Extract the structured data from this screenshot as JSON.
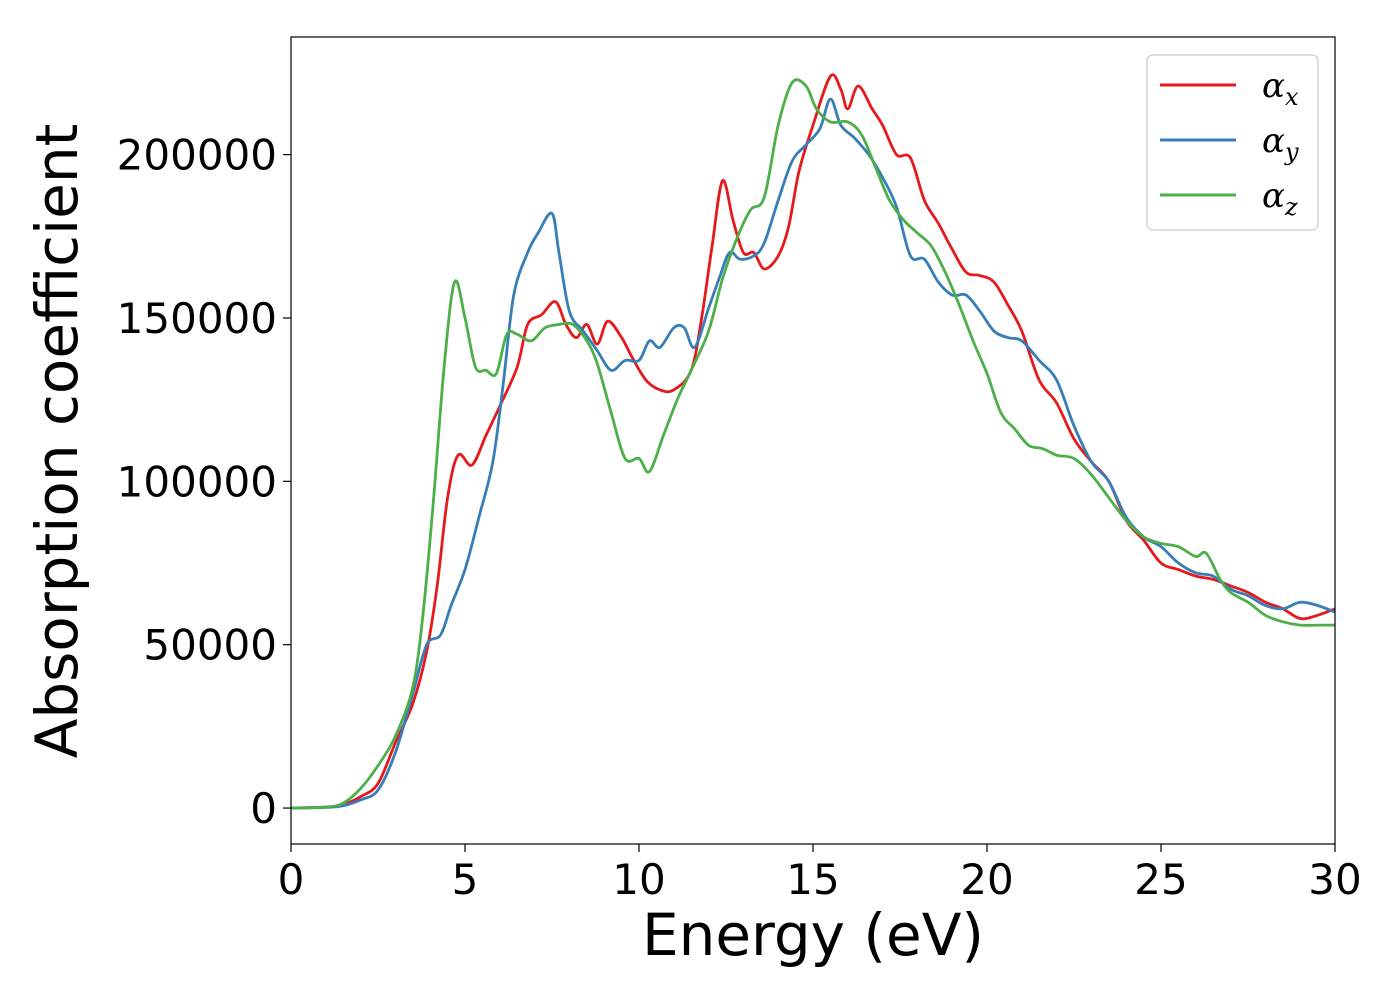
{
  "chart_data": {
    "type": "line",
    "title": "",
    "xlabel": "Energy (eV)",
    "ylabel": "Absorption coefficient",
    "xlim": [
      0,
      30
    ],
    "ylim": [
      -11000,
      236000
    ],
    "xticks": [
      0,
      5,
      10,
      15,
      20,
      25,
      30
    ],
    "yticks": [
      0,
      50000,
      100000,
      150000,
      200000
    ],
    "xtick_labels": [
      "0",
      "5",
      "10",
      "15",
      "20",
      "25",
      "30"
    ],
    "ytick_labels": [
      "0",
      "50000",
      "100000",
      "150000",
      "200000"
    ],
    "grid": false,
    "legend_position": "top-right",
    "series": [
      {
        "name": "αx",
        "symbol": "α",
        "subscript": "x",
        "color": "#e41a1c",
        "points": [
          [
            0,
            0
          ],
          [
            1,
            300
          ],
          [
            1.5,
            1000
          ],
          [
            2,
            3500
          ],
          [
            2.5,
            7500
          ],
          [
            3,
            20000
          ],
          [
            3.5,
            32000
          ],
          [
            3.9,
            48000
          ],
          [
            4.2,
            68000
          ],
          [
            4.5,
            95000
          ],
          [
            4.8,
            108000
          ],
          [
            5.2,
            105000
          ],
          [
            5.6,
            114000
          ],
          [
            6,
            123000
          ],
          [
            6.5,
            135000
          ],
          [
            6.8,
            148000
          ],
          [
            7.2,
            151000
          ],
          [
            7.6,
            155000
          ],
          [
            7.9,
            148000
          ],
          [
            8.2,
            144000
          ],
          [
            8.5,
            148000
          ],
          [
            8.8,
            142000
          ],
          [
            9.1,
            149000
          ],
          [
            9.5,
            144000
          ],
          [
            9.8,
            138000
          ],
          [
            10.2,
            131000
          ],
          [
            10.6,
            128000
          ],
          [
            11,
            128000
          ],
          [
            11.5,
            134000
          ],
          [
            11.8,
            150000
          ],
          [
            12.1,
            172000
          ],
          [
            12.4,
            192000
          ],
          [
            12.7,
            180000
          ],
          [
            13,
            170000
          ],
          [
            13.3,
            170000
          ],
          [
            13.6,
            165000
          ],
          [
            14,
            169000
          ],
          [
            14.3,
            178000
          ],
          [
            14.6,
            195000
          ],
          [
            15,
            209000
          ],
          [
            15.5,
            224000
          ],
          [
            15.8,
            220000
          ],
          [
            16,
            214000
          ],
          [
            16.3,
            221000
          ],
          [
            16.7,
            214000
          ],
          [
            17,
            209000
          ],
          [
            17.4,
            200000
          ],
          [
            17.8,
            199000
          ],
          [
            18.2,
            186000
          ],
          [
            18.6,
            179000
          ],
          [
            19,
            171000
          ],
          [
            19.4,
            164000
          ],
          [
            19.8,
            163000
          ],
          [
            20.2,
            161000
          ],
          [
            20.6,
            154000
          ],
          [
            21,
            146000
          ],
          [
            21.5,
            131000
          ],
          [
            22,
            124000
          ],
          [
            22.5,
            113000
          ],
          [
            23,
            106000
          ],
          [
            23.5,
            100000
          ],
          [
            24,
            88000
          ],
          [
            24.5,
            82000
          ],
          [
            25,
            75000
          ],
          [
            25.5,
            73000
          ],
          [
            26,
            71000
          ],
          [
            26.5,
            70000
          ],
          [
            27,
            68000
          ],
          [
            27.5,
            66000
          ],
          [
            28,
            63000
          ],
          [
            28.5,
            61000
          ],
          [
            29,
            58000
          ],
          [
            29.5,
            59000
          ],
          [
            30,
            61000
          ]
        ]
      },
      {
        "name": "αy",
        "symbol": "α",
        "subscript": "y",
        "color": "#377eb8",
        "points": [
          [
            0,
            0
          ],
          [
            1,
            200
          ],
          [
            1.5,
            700
          ],
          [
            2,
            2500
          ],
          [
            2.5,
            5500
          ],
          [
            3,
            17000
          ],
          [
            3.5,
            35000
          ],
          [
            3.9,
            50000
          ],
          [
            4.3,
            53000
          ],
          [
            4.6,
            62000
          ],
          [
            5,
            73000
          ],
          [
            5.4,
            89000
          ],
          [
            5.8,
            106000
          ],
          [
            6.1,
            130000
          ],
          [
            6.4,
            157000
          ],
          [
            6.8,
            170000
          ],
          [
            7.1,
            176000
          ],
          [
            7.5,
            182000
          ],
          [
            7.7,
            170000
          ],
          [
            8,
            152000
          ],
          [
            8.4,
            146000
          ],
          [
            8.8,
            140000
          ],
          [
            9.2,
            134000
          ],
          [
            9.6,
            137000
          ],
          [
            10,
            137000
          ],
          [
            10.3,
            143000
          ],
          [
            10.6,
            141000
          ],
          [
            11,
            147000
          ],
          [
            11.3,
            147000
          ],
          [
            11.6,
            141000
          ],
          [
            12,
            153000
          ],
          [
            12.3,
            162000
          ],
          [
            12.6,
            170000
          ],
          [
            12.9,
            168000
          ],
          [
            13.3,
            169000
          ],
          [
            13.6,
            173000
          ],
          [
            14,
            186000
          ],
          [
            14.4,
            198000
          ],
          [
            14.8,
            203000
          ],
          [
            15.2,
            208000
          ],
          [
            15.5,
            217000
          ],
          [
            15.8,
            209000
          ],
          [
            16.2,
            205000
          ],
          [
            16.6,
            200000
          ],
          [
            17,
            193000
          ],
          [
            17.4,
            184000
          ],
          [
            17.8,
            169000
          ],
          [
            18.2,
            168000
          ],
          [
            18.6,
            161000
          ],
          [
            19,
            157000
          ],
          [
            19.4,
            157000
          ],
          [
            19.8,
            152000
          ],
          [
            20.2,
            146000
          ],
          [
            20.6,
            144000
          ],
          [
            21,
            143000
          ],
          [
            21.5,
            137000
          ],
          [
            22,
            131000
          ],
          [
            22.5,
            117000
          ],
          [
            23,
            106000
          ],
          [
            23.5,
            100000
          ],
          [
            24,
            89000
          ],
          [
            24.5,
            83000
          ],
          [
            25,
            80000
          ],
          [
            25.5,
            75000
          ],
          [
            26,
            72000
          ],
          [
            26.5,
            71000
          ],
          [
            27,
            67000
          ],
          [
            27.5,
            65000
          ],
          [
            28,
            62000
          ],
          [
            28.5,
            61000
          ],
          [
            29,
            63000
          ],
          [
            29.5,
            62000
          ],
          [
            30,
            60000
          ]
        ]
      },
      {
        "name": "αz",
        "symbol": "α",
        "subscript": "z",
        "color": "#4daf4a",
        "points": [
          [
            0,
            0
          ],
          [
            1,
            300
          ],
          [
            1.5,
            1500
          ],
          [
            2,
            6000
          ],
          [
            2.5,
            13000
          ],
          [
            3,
            22000
          ],
          [
            3.5,
            37000
          ],
          [
            3.8,
            60000
          ],
          [
            4.1,
            95000
          ],
          [
            4.4,
            135000
          ],
          [
            4.7,
            161000
          ],
          [
            5,
            150000
          ],
          [
            5.3,
            135000
          ],
          [
            5.6,
            134000
          ],
          [
            5.9,
            133000
          ],
          [
            6.2,
            145000
          ],
          [
            6.5,
            145000
          ],
          [
            6.9,
            143000
          ],
          [
            7.3,
            147000
          ],
          [
            7.7,
            148000
          ],
          [
            8.1,
            148000
          ],
          [
            8.5,
            143000
          ],
          [
            8.8,
            136000
          ],
          [
            9.2,
            121000
          ],
          [
            9.6,
            107000
          ],
          [
            10,
            107000
          ],
          [
            10.3,
            103000
          ],
          [
            10.7,
            114000
          ],
          [
            11.1,
            125000
          ],
          [
            11.5,
            134000
          ],
          [
            12,
            146000
          ],
          [
            12.4,
            162000
          ],
          [
            12.8,
            174000
          ],
          [
            13.2,
            183000
          ],
          [
            13.6,
            187000
          ],
          [
            14,
            209000
          ],
          [
            14.4,
            222000
          ],
          [
            14.8,
            221000
          ],
          [
            15.1,
            214000
          ],
          [
            15.5,
            210000
          ],
          [
            16,
            210000
          ],
          [
            16.4,
            206000
          ],
          [
            16.8,
            196000
          ],
          [
            17.2,
            186000
          ],
          [
            17.6,
            180000
          ],
          [
            18,
            176000
          ],
          [
            18.4,
            172000
          ],
          [
            18.8,
            164000
          ],
          [
            19.2,
            154000
          ],
          [
            19.6,
            143000
          ],
          [
            20,
            133000
          ],
          [
            20.4,
            121000
          ],
          [
            20.8,
            116000
          ],
          [
            21.2,
            111000
          ],
          [
            21.6,
            110000
          ],
          [
            22,
            108000
          ],
          [
            22.5,
            107000
          ],
          [
            23,
            102000
          ],
          [
            23.5,
            95000
          ],
          [
            24,
            88000
          ],
          [
            24.5,
            83000
          ],
          [
            25,
            81000
          ],
          [
            25.5,
            80000
          ],
          [
            26,
            77000
          ],
          [
            26.3,
            78000
          ],
          [
            26.7,
            70000
          ],
          [
            27,
            66000
          ],
          [
            27.5,
            63000
          ],
          [
            28,
            59000
          ],
          [
            28.5,
            57000
          ],
          [
            29,
            56000
          ],
          [
            29.5,
            56000
          ],
          [
            30,
            56000
          ]
        ]
      }
    ]
  }
}
